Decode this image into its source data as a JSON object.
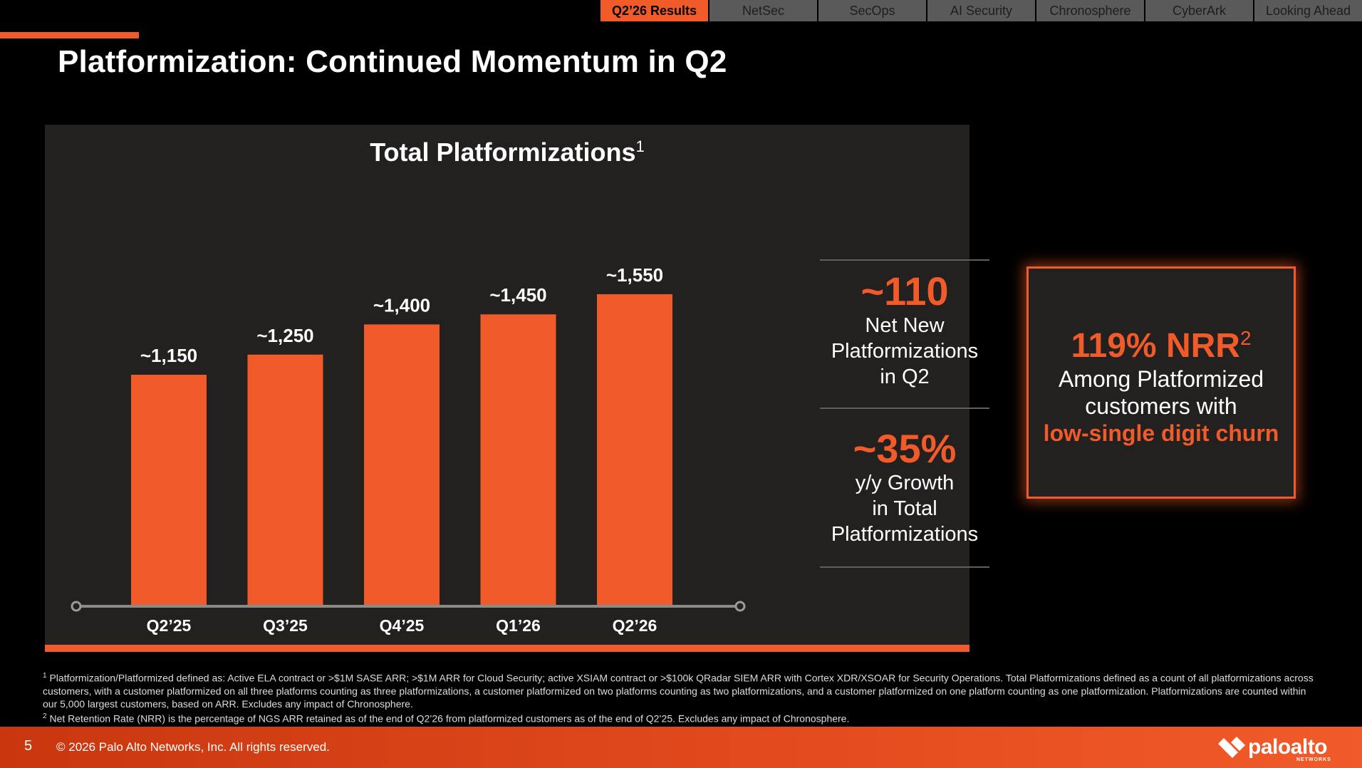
{
  "tabs": [
    {
      "label": "Q2’26 Results",
      "active": true
    },
    {
      "label": "NetSec",
      "active": false
    },
    {
      "label": "SecOps",
      "active": false
    },
    {
      "label": "AI Security",
      "active": false
    },
    {
      "label": "Chronosphere",
      "active": false
    },
    {
      "label": "CyberArk",
      "active": false
    },
    {
      "label": "Looking Ahead",
      "active": false
    }
  ],
  "slide_title": "Platformization: Continued Momentum in Q2",
  "chart_data": {
    "type": "bar",
    "title": "Total Platformizations",
    "title_footnote": "1",
    "categories": [
      "Q2’25",
      "Q3’25",
      "Q4’25",
      "Q1’26",
      "Q2’26"
    ],
    "values": [
      1150,
      1250,
      1400,
      1450,
      1550
    ],
    "data_labels": [
      "~1,150",
      "~1,250",
      "~1,400",
      "~1,450",
      "~1,550"
    ],
    "xlabel": "",
    "ylabel": "",
    "ylim": [
      0,
      1550
    ],
    "grid": false,
    "bar_color": "#f15a29"
  },
  "stats": [
    {
      "value": "~110",
      "lines": [
        "Net New",
        "Platformizations",
        "in Q2"
      ]
    },
    {
      "value": "~35%",
      "lines": [
        "y/y Growth",
        "in Total",
        "Platformizations"
      ]
    }
  ],
  "nrr": {
    "value": "119% NRR",
    "footnote": "2",
    "lines": [
      "Among Platformized",
      "customers with"
    ],
    "highlight": "low-single digit churn"
  },
  "footnotes": [
    {
      "marker": "1",
      "text": "Platformization/Platformized defined as: Active ELA contract or >$1M SASE ARR; >$1M ARR for Cloud Security; active XSIAM contract or >$100k QRadar SIEM ARR with Cortex XDR/XSOAR for Security Operations. Total Platformizations defined as a count of all platformizations across customers, with a customer platformized on all three platforms counting as three platformizations, a customer platformized on two platforms counting as two platformizations, and a customer platformized on one platform counting as one platformization.  Platformizations are counted within our 5,000 largest customers, based on ARR. Excludes any impact of Chronosphere."
    },
    {
      "marker": "2",
      "text": "Net Retention Rate (NRR) is the percentage of NGS ARR retained as of the end of Q2’26 from platformized customers as of the end of Q2’25. Excludes any impact of Chronosphere."
    }
  ],
  "footer": {
    "page_number": "5",
    "copyright": "© 2026 Palo Alto Networks, Inc. All rights reserved.",
    "logo_text": "paloalto",
    "logo_sub": "NETWORKS"
  },
  "colors": {
    "accent": "#f15a29",
    "panel": "#232020",
    "tab_inactive": "#5a5a5a"
  }
}
